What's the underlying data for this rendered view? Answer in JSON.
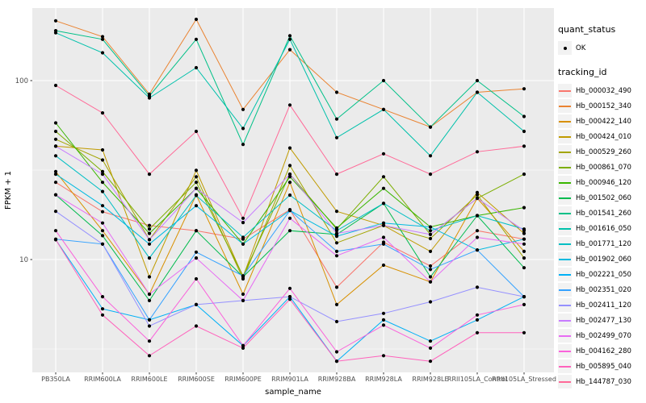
{
  "chart_data": {
    "type": "line",
    "title": "",
    "xlabel": "sample_name",
    "ylabel": "FPKM + 1",
    "yscale": "log10",
    "yticks": [
      100,
      10
    ],
    "ytick_labels": [
      "100",
      "10"
    ],
    "minor_ticks": [
      31.62,
      3.162
    ],
    "ylim": [
      2.2,
      280
    ],
    "grid": true,
    "legend_position": "right",
    "panel_bg": "#EBEBEB",
    "grid_color": "#FFFFFF",
    "axis_text_color": "#4D4D4D",
    "axis_title_color": "#000000",
    "tick_color": "#333333",
    "point_color": "#000000",
    "categories": [
      "PB350LA",
      "RRIM600LA",
      "RRIM600LE",
      "RRIM600SE",
      "RRIM600PE",
      "RRIM901LA",
      "RRIM928BA",
      "RRIM928LA",
      "RRIM928LE",
      "RRII105LA_Control",
      "RRII105LA_Stressed"
    ],
    "series": [
      {
        "name": "Hb_000032_490",
        "color": "#F8766D",
        "values": [
          27,
          18.5,
          15.5,
          14.5,
          13,
          19,
          7,
          12.5,
          9.2,
          14.5,
          13
        ]
      },
      {
        "name": "Hb_000152_340",
        "color": "#EA8331",
        "values": [
          216,
          176,
          84,
          220,
          69,
          149,
          86,
          69,
          55,
          86,
          90
        ]
      },
      {
        "name": "Hb_000422_140",
        "color": "#D89000",
        "values": [
          31,
          14.5,
          6.4,
          23,
          6.4,
          27,
          5.6,
          9.3,
          7.5,
          22,
          11.1
        ]
      },
      {
        "name": "Hb_000424_010",
        "color": "#C09B00",
        "values": [
          43,
          41,
          8,
          31.5,
          8,
          42,
          18.6,
          15.5,
          11.1,
          23.7,
          14
        ]
      },
      {
        "name": "Hb_000529_260",
        "color": "#A3A500",
        "values": [
          47,
          36,
          12.9,
          29,
          7.8,
          33.5,
          12.4,
          15.5,
          13.1,
          23,
          10.2
        ]
      },
      {
        "name": "Hb_000861_070",
        "color": "#7CAE00",
        "values": [
          52,
          31,
          14.8,
          27,
          8.1,
          30,
          14.8,
          29,
          13.8,
          22,
          30
        ]
      },
      {
        "name": "Hb_000946_120",
        "color": "#39B600",
        "values": [
          58,
          27,
          14,
          25,
          12.2,
          29,
          15,
          25,
          15.2,
          17.6,
          19.5
        ]
      },
      {
        "name": "Hb_001502_060",
        "color": "#00BB4E",
        "values": [
          23,
          13.6,
          5.9,
          14.5,
          8,
          14.5,
          13.8,
          20.6,
          8,
          17.6,
          9
        ]
      },
      {
        "name": "Hb_001541_260",
        "color": "#00C087",
        "values": [
          190,
          170,
          82,
          170,
          44,
          178,
          61,
          100,
          55,
          100,
          63
        ]
      },
      {
        "name": "Hb_001616_050",
        "color": "#00C1AB",
        "values": [
          185,
          143,
          80,
          118,
          54,
          170,
          48,
          69,
          38,
          86,
          52
        ]
      },
      {
        "name": "Hb_001771_120",
        "color": "#00BFC4",
        "values": [
          38,
          24,
          10.2,
          22.8,
          13.3,
          22.9,
          14.5,
          20.6,
          14.5,
          17.6,
          14.8
        ]
      },
      {
        "name": "Hb_001902_060",
        "color": "#00BAE0",
        "values": [
          30,
          20,
          12.2,
          20,
          12.2,
          18.8,
          13.5,
          16,
          15.2,
          11.3,
          13
        ]
      },
      {
        "name": "Hb_002221_050",
        "color": "#00B0F6",
        "values": [
          12.9,
          5.3,
          4.6,
          5.6,
          3.3,
          6.2,
          2.7,
          4.6,
          3.5,
          4.6,
          6.2
        ]
      },
      {
        "name": "Hb_002351_020",
        "color": "#35A2FF",
        "values": [
          13,
          12.2,
          4.6,
          11,
          8.1,
          18.8,
          11.1,
          12.2,
          8.8,
          11.3,
          6.2
        ]
      },
      {
        "name": "Hb_002411_120",
        "color": "#9590FF",
        "values": [
          18.6,
          12.2,
          4.25,
          5.6,
          5.9,
          6.2,
          4.5,
          5,
          5.8,
          7,
          6.2
        ]
      },
      {
        "name": "Hb_002477_130",
        "color": "#C77CFF",
        "values": [
          43,
          30,
          12.9,
          25,
          16.1,
          30,
          14,
          15.5,
          13.8,
          22,
          14.5
        ]
      },
      {
        "name": "Hb_002499_070",
        "color": "#E76BF3",
        "values": [
          23,
          16,
          6.4,
          10.2,
          5.9,
          17,
          10.5,
          13.3,
          7.5,
          13.3,
          12.2
        ]
      },
      {
        "name": "Hb_004162_280",
        "color": "#FA62DB",
        "values": [
          14.5,
          6.2,
          3.5,
          7.8,
          3.3,
          6.9,
          3.05,
          4.3,
          3.2,
          4.9,
          5.6
        ]
      },
      {
        "name": "Hb_005895_040",
        "color": "#FF62BC",
        "values": [
          12.9,
          4.9,
          2.9,
          4.25,
          3.2,
          6,
          2.7,
          2.9,
          2.7,
          3.9,
          3.9
        ]
      },
      {
        "name": "Hb_144787_030",
        "color": "#FF6A98",
        "values": [
          94,
          66,
          30,
          52,
          17,
          73,
          30,
          39,
          30,
          40,
          43
        ]
      }
    ],
    "legend": {
      "quant_status_title": "quant_status",
      "quant_status_items": [
        {
          "label": "OK",
          "shape": "point",
          "color": "#000000"
        }
      ],
      "tracking_id_title": "tracking_id",
      "key_bg": "#F2F2F2"
    }
  }
}
